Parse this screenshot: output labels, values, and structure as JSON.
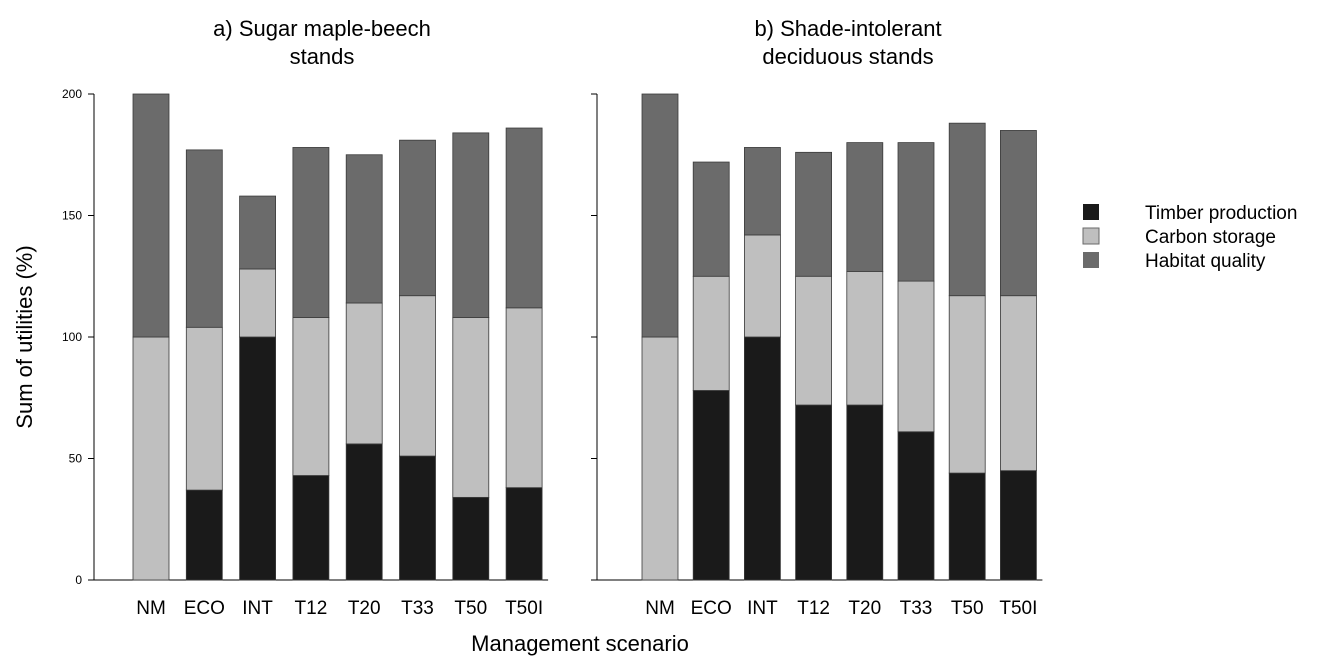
{
  "chart_data": {
    "type": "bar",
    "stacked": true,
    "xlabel": "Management scenario",
    "ylabel": "Sum of utilities (%)",
    "ylim": [
      0,
      200
    ],
    "yticks": [
      0,
      50,
      100,
      150,
      200
    ],
    "categories": [
      "NM",
      "ECO",
      "INT",
      "T12",
      "T20",
      "T33",
      "T50",
      "T50I"
    ],
    "legend_position": "right",
    "series_names": [
      "Timber production",
      "Carbon storage",
      "Habitat quality"
    ],
    "colors": {
      "Timber production": "#1a1a1a",
      "Carbon storage": "#bfbfbf",
      "Habitat quality": "#6b6b6b"
    },
    "panels": [
      {
        "title_line1": "a) Sugar maple-beech",
        "title_line2": "stands",
        "series": [
          {
            "name": "Timber production",
            "values": [
              0,
              37,
              100,
              43,
              56,
              51,
              34,
              38
            ]
          },
          {
            "name": "Carbon storage",
            "values": [
              100,
              67,
              28,
              65,
              58,
              66,
              74,
              74
            ]
          },
          {
            "name": "Habitat quality",
            "values": [
              100,
              73,
              30,
              70,
              61,
              64,
              76,
              74
            ]
          }
        ]
      },
      {
        "title_line1": "b) Shade-intolerant",
        "title_line2": "deciduous stands",
        "series": [
          {
            "name": "Timber production",
            "values": [
              0,
              78,
              100,
              72,
              72,
              61,
              44,
              45
            ]
          },
          {
            "name": "Carbon storage",
            "values": [
              100,
              47,
              42,
              53,
              55,
              62,
              73,
              72
            ]
          },
          {
            "name": "Habitat quality",
            "values": [
              100,
              47,
              36,
              51,
              53,
              57,
              71,
              68
            ]
          }
        ]
      }
    ]
  }
}
